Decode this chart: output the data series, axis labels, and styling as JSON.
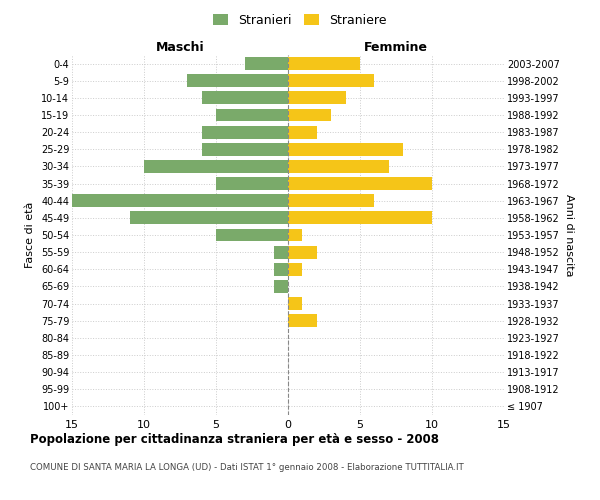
{
  "age_groups": [
    "100+",
    "95-99",
    "90-94",
    "85-89",
    "80-84",
    "75-79",
    "70-74",
    "65-69",
    "60-64",
    "55-59",
    "50-54",
    "45-49",
    "40-44",
    "35-39",
    "30-34",
    "25-29",
    "20-24",
    "15-19",
    "10-14",
    "5-9",
    "0-4"
  ],
  "birth_years": [
    "≤ 1907",
    "1908-1912",
    "1913-1917",
    "1918-1922",
    "1923-1927",
    "1928-1932",
    "1933-1937",
    "1938-1942",
    "1943-1947",
    "1948-1952",
    "1953-1957",
    "1958-1962",
    "1963-1967",
    "1968-1972",
    "1973-1977",
    "1978-1982",
    "1983-1987",
    "1988-1992",
    "1993-1997",
    "1998-2002",
    "2003-2007"
  ],
  "males": [
    0,
    0,
    0,
    0,
    0,
    0,
    0,
    1,
    1,
    1,
    5,
    11,
    15,
    5,
    10,
    6,
    6,
    5,
    6,
    7,
    3
  ],
  "females": [
    0,
    0,
    0,
    0,
    0,
    2,
    1,
    0,
    1,
    2,
    1,
    10,
    6,
    10,
    7,
    8,
    2,
    3,
    4,
    6,
    5
  ],
  "male_color": "#7aaa6a",
  "female_color": "#f5c518",
  "xlim": 15,
  "title": "Popolazione per cittadinanza straniera per età e sesso - 2008",
  "subtitle": "COMUNE DI SANTA MARIA LA LONGA (UD) - Dati ISTAT 1° gennaio 2008 - Elaborazione TUTTITALIA.IT",
  "ylabel_left": "Fasce di età",
  "ylabel_right": "Anni di nascita",
  "xlabel_left": "Maschi",
  "xlabel_right": "Femmine",
  "legend_male": "Stranieri",
  "legend_female": "Straniere",
  "background_color": "#ffffff",
  "grid_color": "#cccccc",
  "center_line_color": "#888888",
  "bar_height": 0.75
}
